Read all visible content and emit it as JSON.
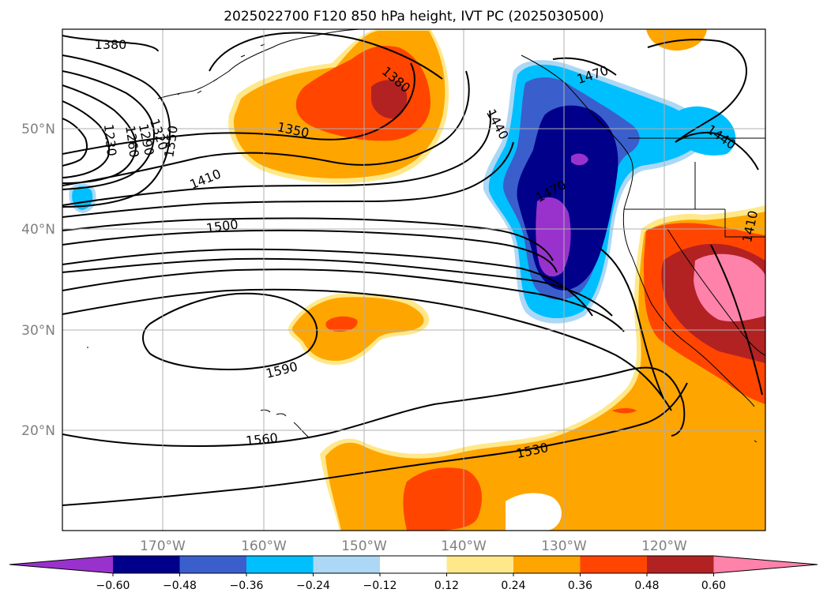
{
  "title": "2025022700 F120 850 hPa height, IVT PC (2025030500)",
  "lat_labels": [
    "50°N",
    "40°N",
    "30°N",
    "20°N"
  ],
  "lon_labels": [
    "170°W",
    "160°W",
    "150°W",
    "140°W",
    "130°W",
    "120°W"
  ],
  "contour_labels": [
    "1380",
    "1380",
    "1350",
    "1350",
    "1320",
    "1290",
    "1260",
    "1230",
    "1410",
    "1440",
    "1470",
    "1470",
    "1440",
    "1500",
    "1590",
    "1560",
    "1530",
    "1410"
  ],
  "colorbar": {
    "tick_labels": [
      "−0.60",
      "−0.48",
      "−0.36",
      "−0.24",
      "−0.12",
      "0.12",
      "0.24",
      "0.36",
      "0.48",
      "0.60"
    ],
    "colors": [
      "#9932cc",
      "#00008b",
      "#3a5fcd",
      "#00bfff",
      "#add8f5",
      "#ffffff",
      "#ffe88a",
      "#ffa500",
      "#ff4500",
      "#b22222",
      "#ff82ab"
    ]
  }
}
